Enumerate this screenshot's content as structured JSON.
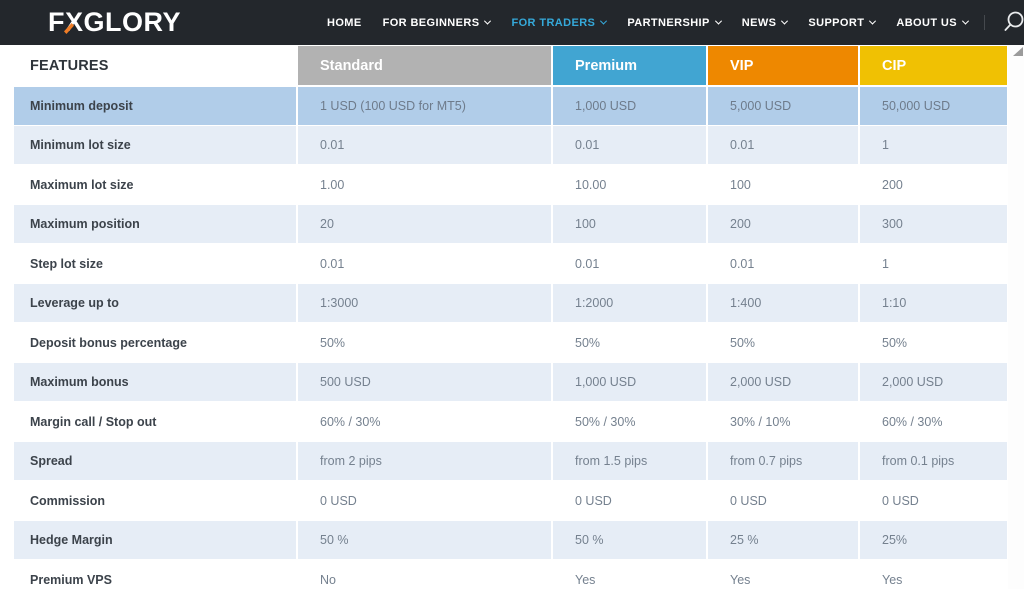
{
  "brand": {
    "logo_prefix": "F",
    "logo_accent_letter": "X",
    "logo_suffix": "GLORY",
    "accent_color": "#f07d26"
  },
  "nav": {
    "items": [
      {
        "label": "HOME",
        "caret": false,
        "active": false
      },
      {
        "label": "FOR BEGINNERS",
        "caret": true,
        "active": false
      },
      {
        "label": "FOR TRADERS",
        "caret": true,
        "active": true
      },
      {
        "label": "PARTNERSHIP",
        "caret": true,
        "active": false
      },
      {
        "label": "NEWS",
        "caret": true,
        "active": false
      },
      {
        "label": "SUPPORT",
        "caret": true,
        "active": false
      },
      {
        "label": "ABOUT US",
        "caret": true,
        "active": false
      }
    ],
    "active_color": "#35a9da"
  },
  "icons": {
    "search": "search-icon",
    "chevron": "chevron-down-icon",
    "scroll_arrow": "scroll-arrow-icon"
  },
  "table": {
    "features_header": "FEATURES",
    "columns": [
      {
        "label": "Standard",
        "color": "#b2b2b2"
      },
      {
        "label": "Premium",
        "color": "#41a5d2"
      },
      {
        "label": "VIP",
        "color": "#ee8800"
      },
      {
        "label": "CIP",
        "color": "#f0c103"
      }
    ],
    "rows": [
      {
        "feature": "Minimum deposit",
        "values": [
          "1 USD (100 USD for MT5)",
          "1,000 USD",
          "5,000 USD",
          "50,000 USD"
        ]
      },
      {
        "feature": "Minimum lot size",
        "values": [
          "0.01",
          "0.01",
          "0.01",
          "1"
        ]
      },
      {
        "feature": "Maximum lot size",
        "values": [
          "1.00",
          "10.00",
          "100",
          "200"
        ]
      },
      {
        "feature": "Maximum position",
        "values": [
          "20",
          "100",
          "200",
          "300"
        ]
      },
      {
        "feature": "Step lot size",
        "values": [
          "0.01",
          "0.01",
          "0.01",
          "1"
        ]
      },
      {
        "feature": "Leverage up to",
        "values": [
          "1:3000",
          "1:2000",
          "1:400",
          "1:10"
        ]
      },
      {
        "feature": "Deposit bonus percentage",
        "values": [
          "50%",
          "50%",
          "50%",
          "50%"
        ]
      },
      {
        "feature": "Maximum bonus",
        "values": [
          "500 USD",
          "1,000 USD",
          "2,000 USD",
          "2,000 USD"
        ]
      },
      {
        "feature": "Margin call / Stop out",
        "values": [
          "60% / 30%",
          "50% / 30%",
          "30% / 10%",
          "60% / 30%"
        ]
      },
      {
        "feature": "Spread",
        "values": [
          "from 2 pips",
          "from 1.5 pips",
          "from 0.7 pips",
          "from 0.1 pips"
        ]
      },
      {
        "feature": "Commission",
        "values": [
          "0 USD",
          "0 USD",
          "0 USD",
          "0 USD"
        ]
      },
      {
        "feature": "Hedge Margin",
        "values": [
          "50 %",
          "50 %",
          "25 %",
          "25%"
        ]
      },
      {
        "feature": "Premium VPS",
        "values": [
          "No",
          "Yes",
          "Yes",
          "Yes"
        ]
      }
    ]
  }
}
